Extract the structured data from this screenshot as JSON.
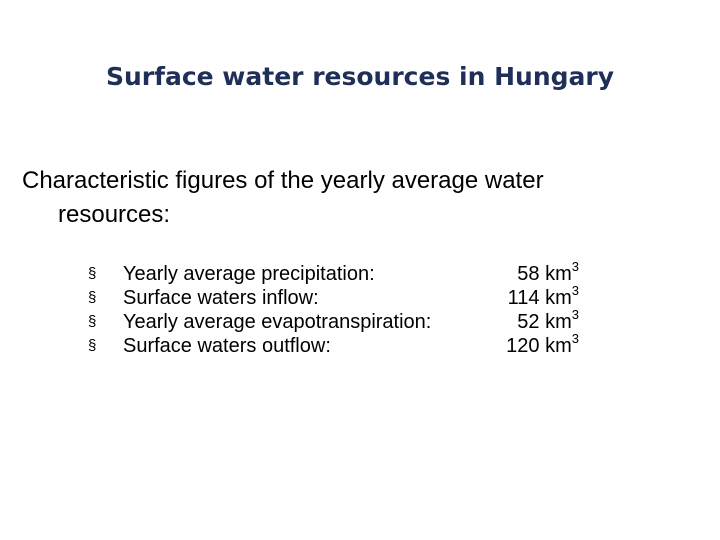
{
  "title": "Surface water resources in Hungary",
  "intro": {
    "line1": "Characteristic figures of the yearly average water",
    "line2": "resources:"
  },
  "bullet_symbol": "§",
  "unit": "km",
  "unit_exponent": "3",
  "items": [
    {
      "label": "Yearly average precipitation:",
      "value": "58"
    },
    {
      "label": "Surface waters inflow:",
      "value": "114"
    },
    {
      "label": "Yearly average evapotranspiration:",
      "value": "52"
    },
    {
      "label": "Surface waters outflow:",
      "value": "120"
    }
  ],
  "colors": {
    "title": "#1f2f57",
    "text": "#000000",
    "background": "#ffffff"
  }
}
